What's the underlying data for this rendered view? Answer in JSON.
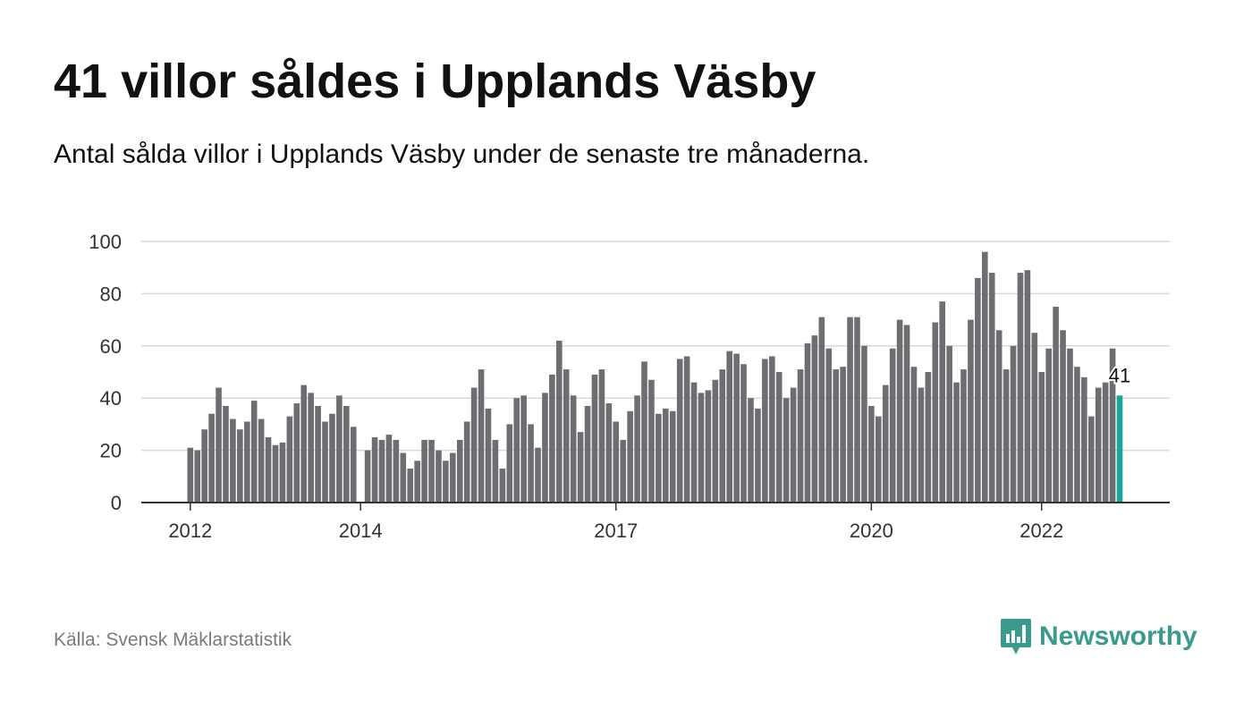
{
  "header": {
    "title": "41 villor såldes i Upplands Väsby",
    "subtitle": "Antal sålda villor i Upplands Väsby under de senaste tre månaderna."
  },
  "footer": {
    "source": "Källa: Svensk Mäklarstatistik",
    "brand": "Newsworthy"
  },
  "colors": {
    "bar": "#6d6d72",
    "highlight": "#1aa598",
    "grid": "#d9d9d9",
    "axis": "#333333",
    "brand": "#3a9a8e"
  },
  "icons": {
    "logo": "newsworthy-logo-icon"
  },
  "chart_data": {
    "type": "bar",
    "title": "41 villor såldes i Upplands Väsby",
    "subtitle": "Antal sålda villor i Upplands Väsby under de senaste tre månaderna.",
    "xlabel": "",
    "ylabel": "",
    "ylim": [
      0,
      100
    ],
    "yticks": [
      0,
      20,
      40,
      60,
      80,
      100
    ],
    "grid": true,
    "start": "2012-01",
    "xtick_labels": [
      {
        "label": "2012",
        "x": "2012-01"
      },
      {
        "label": "2014",
        "x": "2014-01"
      },
      {
        "label": "2017",
        "x": "2017-01"
      },
      {
        "label": "2020",
        "x": "2020-01"
      },
      {
        "label": "2022",
        "x": "2022-01"
      }
    ],
    "highlight_label": "41",
    "values": [
      21,
      20,
      28,
      34,
      44,
      37,
      32,
      28,
      31,
      39,
      32,
      25,
      22,
      23,
      33,
      38,
      45,
      42,
      37,
      31,
      34,
      41,
      37,
      29,
      0,
      20,
      25,
      24,
      26,
      24,
      19,
      13,
      16,
      24,
      24,
      20,
      16,
      19,
      24,
      31,
      44,
      51,
      36,
      24,
      13,
      30,
      40,
      41,
      30,
      21,
      42,
      49,
      62,
      51,
      41,
      27,
      37,
      49,
      51,
      38,
      31,
      24,
      35,
      41,
      54,
      47,
      34,
      36,
      35,
      55,
      56,
      46,
      42,
      43,
      47,
      51,
      58,
      57,
      53,
      40,
      36,
      55,
      56,
      50,
      40,
      44,
      51,
      61,
      64,
      71,
      59,
      51,
      52,
      71,
      71,
      60,
      37,
      33,
      45,
      59,
      70,
      68,
      52,
      44,
      50,
      69,
      77,
      60,
      46,
      51,
      70,
      86,
      96,
      88,
      66,
      51,
      60,
      88,
      89,
      65,
      50,
      59,
      75,
      66,
      59,
      52,
      48,
      33,
      44,
      46,
      59,
      41
    ]
  }
}
